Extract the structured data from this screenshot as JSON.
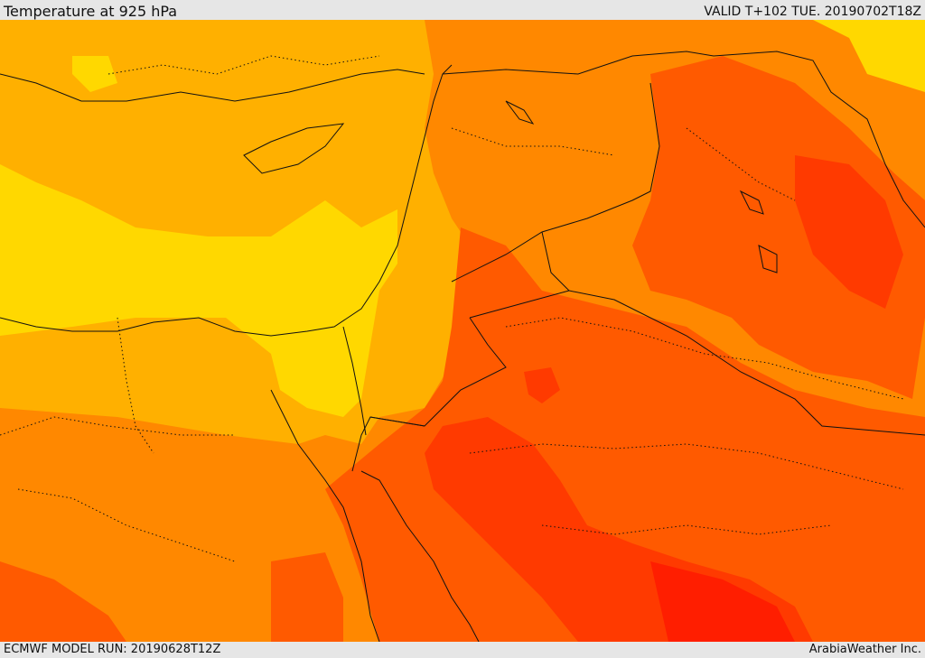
{
  "header": {
    "title": "Temperature at 925 hPa",
    "valid": "VALID T+102 TUE. 20190702T18Z"
  },
  "footer": {
    "model_run": "ECMWF MODEL RUN: 20190628T12Z",
    "credit": "ArabiaWeather Inc."
  },
  "map": {
    "variable": "temperature-925hPa",
    "palette": [
      "#ffd800",
      "#ffb000",
      "#ff8800",
      "#ff5a00",
      "#ff3a00",
      "#ff1e00"
    ]
  }
}
